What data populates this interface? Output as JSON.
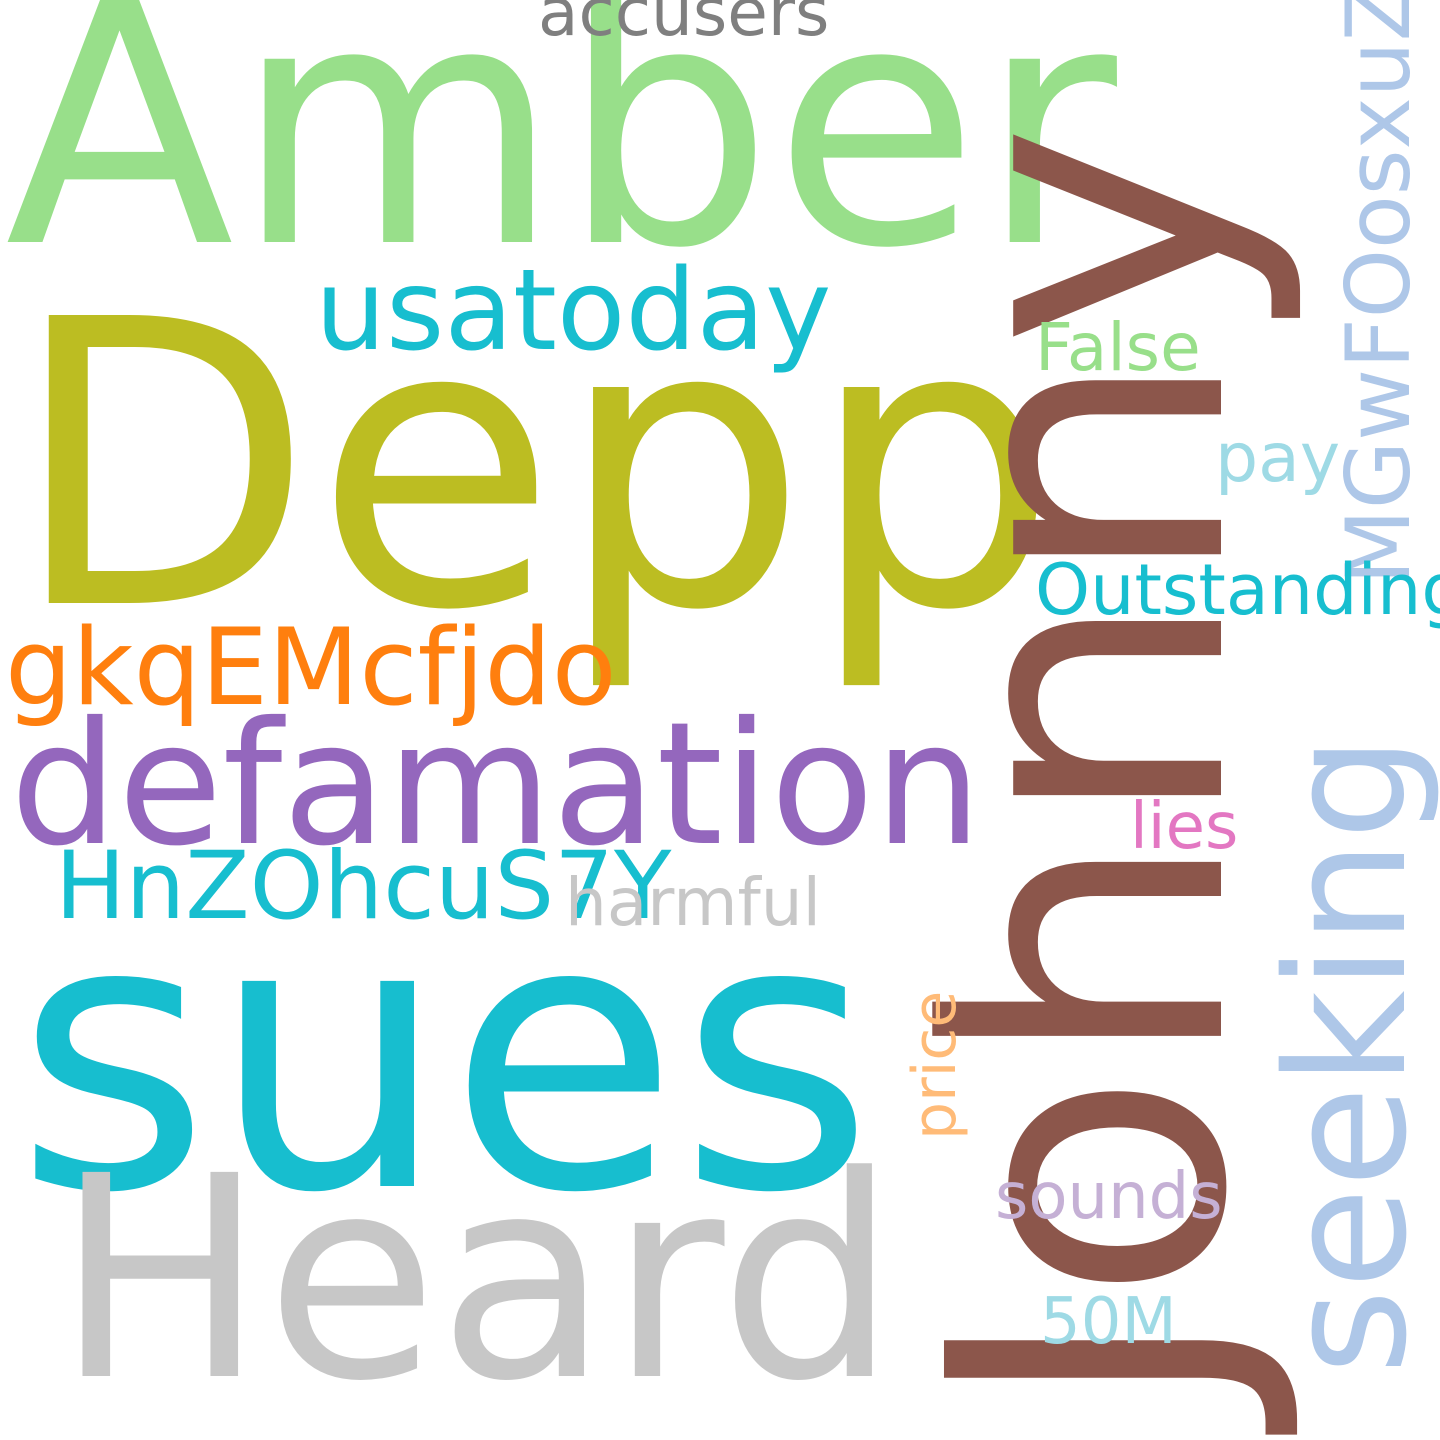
{
  "words": [
    {
      "key": "amber",
      "text": "Amber",
      "color": "#98df8a"
    },
    {
      "key": "depp",
      "text": "Depp",
      "color": "#bcbd22"
    },
    {
      "key": "johnny",
      "text": "Johnny",
      "color": "#8c564b"
    },
    {
      "key": "sues",
      "text": "sues",
      "color": "#17becf"
    },
    {
      "key": "heard",
      "text": "Heard",
      "color": "#c7c7c7"
    },
    {
      "key": "defamation",
      "text": "defamation",
      "color": "#9467bd"
    },
    {
      "key": "usatoday",
      "text": "usatoday",
      "color": "#17becf"
    },
    {
      "key": "seeking",
      "text": "seeking",
      "color": "#aec7e8"
    },
    {
      "key": "gkqemcfjdo",
      "text": "gkqEMcfjdo",
      "color": "#ff7f0e"
    },
    {
      "key": "hnzohcus7y",
      "text": "HnZOhcuS7Y",
      "color": "#17becf"
    },
    {
      "key": "mgwfoosxuz",
      "text": "MGwFOosxuZ",
      "color": "#aec7e8"
    },
    {
      "key": "outstanding",
      "text": "Outstanding",
      "color": "#17becf"
    },
    {
      "key": "accusers",
      "text": "accusers",
      "color": "#7f7f7f"
    },
    {
      "key": "false",
      "text": "False",
      "color": "#98df8a"
    },
    {
      "key": "pay",
      "text": "pay",
      "color": "#9edae5"
    },
    {
      "key": "harmful",
      "text": "harmful",
      "color": "#c7c7c7"
    },
    {
      "key": "lies",
      "text": "lies",
      "color": "#e377c2"
    },
    {
      "key": "price",
      "text": "price",
      "color": "#ffbb78"
    },
    {
      "key": "sounds",
      "text": "sounds",
      "color": "#c5b0d5"
    },
    {
      "key": "fiftym",
      "text": "50M",
      "color": "#9edae5"
    }
  ]
}
